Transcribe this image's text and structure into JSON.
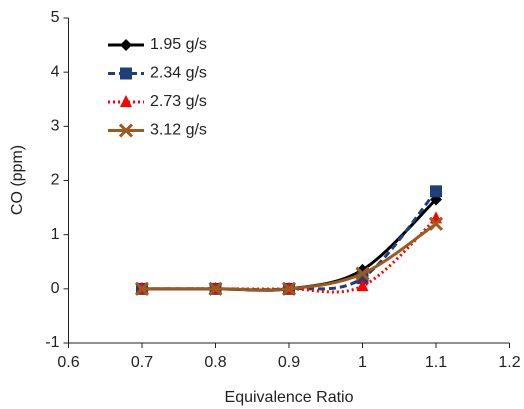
{
  "chart_data": {
    "type": "line",
    "x_label": "Equivalence Ratio",
    "y_label": "CO (ppm)",
    "x": [
      0.7,
      0.8,
      0.9,
      1,
      1.1
    ],
    "series": [
      {
        "name": "1.95 g/s",
        "color": "#000000",
        "marker": "diamond",
        "dash": "solid",
        "values": [
          0,
          0,
          0,
          0.35,
          1.65
        ]
      },
      {
        "name": "2.34 g/s",
        "color": "#1f3f7a",
        "marker": "square",
        "dash": "dashed",
        "values": [
          0,
          0,
          0,
          0.2,
          1.8
        ]
      },
      {
        "name": "2.73 g/s",
        "color": "#ff0000",
        "marker": "triangle",
        "dash": "dotted",
        "values": [
          0,
          0,
          0,
          0.05,
          1.3
        ]
      },
      {
        "name": "3.12 g/s",
        "color": "#9c5a1e",
        "marker": "x",
        "dash": "solid",
        "values": [
          0,
          0,
          0,
          0.28,
          1.2
        ]
      }
    ],
    "xlim": [
      0.6,
      1.2
    ],
    "xticks": [
      0.6,
      0.7,
      0.8,
      0.9,
      1,
      1.1,
      1.2
    ],
    "ylim": [
      -1,
      5
    ],
    "yticks": [
      -1,
      0,
      1,
      2,
      3,
      4,
      5
    ],
    "grid": false,
    "legend": "top-left"
  }
}
